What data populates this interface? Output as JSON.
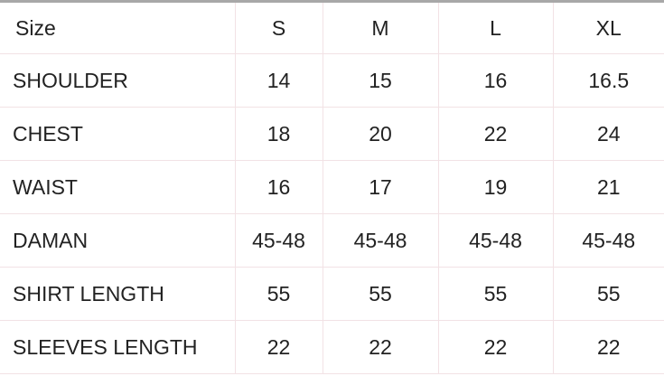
{
  "header": {
    "label": "Size",
    "sizes": [
      "S",
      "M",
      "L",
      "XL"
    ]
  },
  "rows": [
    {
      "label": "SHOULDER",
      "values": [
        "14",
        "15",
        "16",
        "16.5"
      ]
    },
    {
      "label": "CHEST",
      "values": [
        "18",
        "20",
        "22",
        "24"
      ]
    },
    {
      "label": "WAIST",
      "values": [
        "16",
        "17",
        "19",
        "21"
      ]
    },
    {
      "label": "DAMAN",
      "values": [
        "45-48",
        "45-48",
        "45-48",
        "45-48"
      ]
    },
    {
      "label": "SHIRT LENGTH",
      "values": [
        "55",
        "55",
        "55",
        "55"
      ]
    },
    {
      "label": "SLEEVES LENGTH",
      "values": [
        "22",
        "22",
        "22",
        "22"
      ]
    }
  ]
}
